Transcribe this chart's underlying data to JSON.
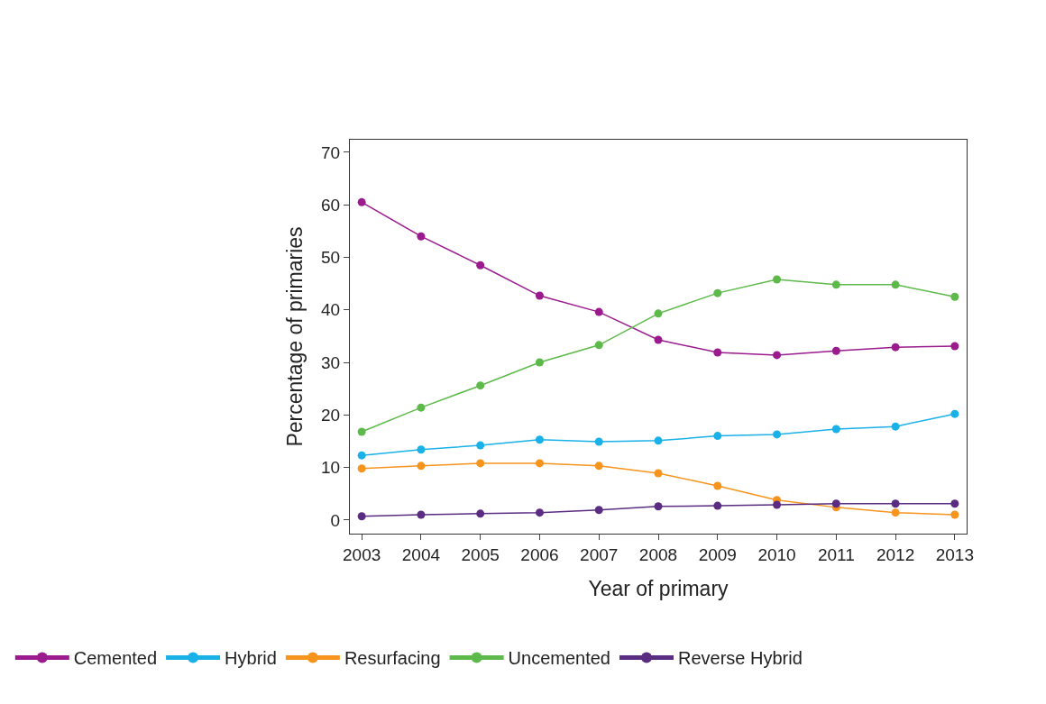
{
  "chart_data": {
    "type": "line",
    "xlabel": "Year of primary",
    "ylabel": "Percentage of primaries",
    "x": [
      2003,
      2004,
      2005,
      2006,
      2007,
      2008,
      2009,
      2010,
      2011,
      2012,
      2013
    ],
    "series": [
      {
        "name": "Cemented",
        "color": "#9b1b8e",
        "values": [
          60.5,
          54.0,
          48.5,
          42.7,
          39.6,
          34.3,
          31.9,
          31.4,
          32.2,
          32.9,
          33.1
        ]
      },
      {
        "name": "Hybrid",
        "color": "#1ab0e8",
        "values": [
          12.3,
          13.4,
          14.2,
          15.3,
          14.9,
          15.1,
          16.0,
          16.3,
          17.3,
          17.8,
          20.2
        ]
      },
      {
        "name": "Resurfacing",
        "color": "#f7941d",
        "values": [
          9.8,
          10.3,
          10.8,
          10.8,
          10.3,
          8.9,
          6.5,
          3.8,
          2.4,
          1.4,
          1.0
        ]
      },
      {
        "name": "Uncemented",
        "color": "#5db94a",
        "values": [
          16.8,
          21.4,
          25.6,
          30.0,
          33.3,
          39.3,
          43.2,
          45.8,
          44.8,
          44.8,
          42.5
        ]
      },
      {
        "name": "Reverse Hybrid",
        "color": "#5b2d82",
        "values": [
          0.7,
          1.0,
          1.2,
          1.4,
          1.9,
          2.6,
          2.7,
          2.9,
          3.1,
          3.1,
          3.1
        ]
      }
    ],
    "xlim": [
      2002.8,
      2013.2
    ],
    "xticks": [
      2003,
      2004,
      2005,
      2006,
      2007,
      2008,
      2009,
      2010,
      2011,
      2012,
      2013
    ],
    "ylim": [
      -2.6,
      72.4
    ],
    "yticks": [
      0,
      10,
      20,
      30,
      40,
      50,
      60,
      70
    ],
    "grid": false,
    "legend": "bottom",
    "marker": "circle",
    "line_style": "solid"
  }
}
